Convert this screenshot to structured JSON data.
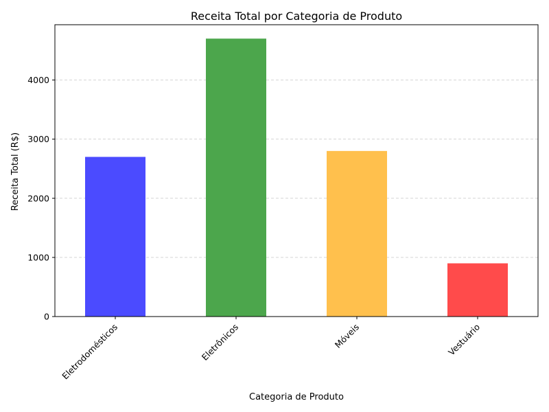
{
  "chart_data": {
    "type": "bar",
    "title": "Receita Total por Categoria de Produto",
    "xlabel": "Categoria de Produto",
    "ylabel": "Receita Total (R$)",
    "categories": [
      "Eletrodomésticos",
      "Eletrônicos",
      "Móveis",
      "Vestuário"
    ],
    "values": [
      2700,
      4700,
      2800,
      900
    ],
    "colors": [
      "#4b4bff",
      "#4ca64c",
      "#ffc04d",
      "#ff4b4b"
    ],
    "ylim": [
      0,
      4935
    ],
    "yticks": [
      0,
      1000,
      2000,
      3000,
      4000
    ],
    "grid": "y-dashed",
    "legend": "none"
  }
}
